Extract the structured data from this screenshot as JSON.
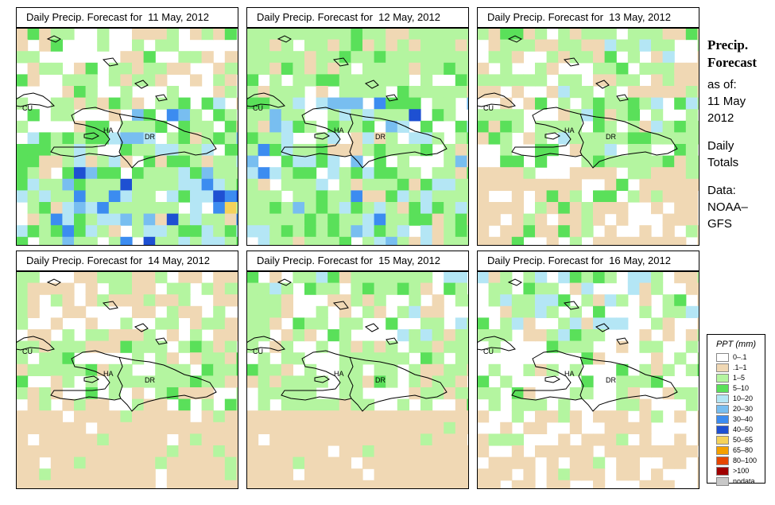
{
  "panels": [
    {
      "title": "Daily Precip. Forecast for  11 May, 2012",
      "date": "11 May, 2012"
    },
    {
      "title": "Daily Precip. Forecast for  12 May, 2012",
      "date": "12 May, 2012"
    },
    {
      "title": "Daily Precip. Forecast for  13 May, 2012",
      "date": "13 May, 2012"
    },
    {
      "title": "Daily Precip. Forecast for  14 May, 2012",
      "date": "14 May, 2012"
    },
    {
      "title": "Daily Precip. Forecast for  15 May, 2012",
      "date": "15 May, 2012"
    },
    {
      "title": "Daily Precip. Forecast for  16 May, 2012",
      "date": "16 May, 2012"
    }
  ],
  "map_labels": {
    "cuba": "CU",
    "haiti": "HA",
    "dominican_republic": "DR"
  },
  "sidebar": {
    "title_line1": "Precip.",
    "title_line2": "Forecast",
    "as_of": "as of:",
    "date_line1": "11 May",
    "date_line2": "2012",
    "totals_line1": "Daily",
    "totals_line2": "Totals",
    "data_line1": "Data:",
    "data_line2": "NOAA–",
    "data_line3": "GFS"
  },
  "legend": {
    "title": "PPT (mm)",
    "classes": [
      {
        "label": "0–.1",
        "color": "#ffffff"
      },
      {
        "label": ".1–1",
        "color": "#f0d8b4"
      },
      {
        "label": "1–5",
        "color": "#b4f5a0"
      },
      {
        "label": "5–10",
        "color": "#5ae05a"
      },
      {
        "label": "10–20",
        "color": "#b4e6f5"
      },
      {
        "label": "20–30",
        "color": "#78bef0"
      },
      {
        "label": "30–40",
        "color": "#3c8cf0"
      },
      {
        "label": "40–50",
        "color": "#1e50d2"
      },
      {
        "label": "50–65",
        "color": "#f5d25a"
      },
      {
        "label": "65–80",
        "color": "#f5a000"
      },
      {
        "label": "80–100",
        "color": "#e64600"
      },
      {
        "label": ">100",
        "color": "#a00000"
      },
      {
        "label": "nodata",
        "color": "#c8c8c8"
      }
    ]
  }
}
